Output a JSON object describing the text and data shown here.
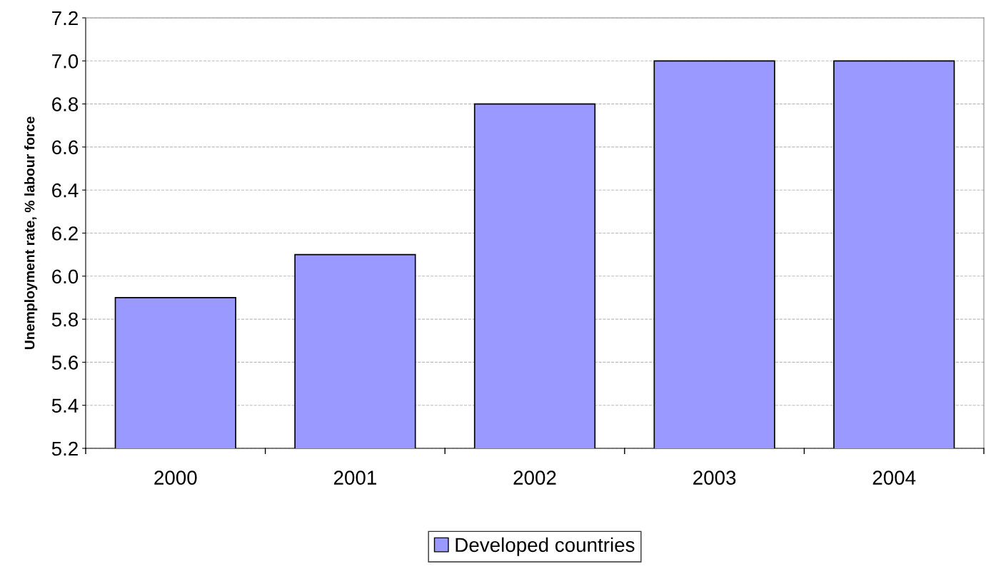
{
  "chart_data": {
    "type": "bar",
    "ylabel": "Unemployment rate, % labour force",
    "categories": [
      "2000",
      "2001",
      "2002",
      "2003",
      "2004"
    ],
    "series": [
      {
        "name": "Developed countries",
        "color": "#9999ff",
        "values": [
          5.9,
          6.1,
          6.8,
          7.0,
          7.0
        ]
      }
    ],
    "ylim": [
      5.2,
      7.2
    ],
    "yticks": [
      5.2,
      5.4,
      5.6,
      5.8,
      {
        "value": 6,
        "label": "6.0"
      },
      6.2,
      6.4,
      6.6,
      6.8,
      {
        "value": 7,
        "label": "7.0"
      },
      7.2
    ],
    "grid": "y",
    "legend": "bottom",
    "line_style": "dashed"
  }
}
